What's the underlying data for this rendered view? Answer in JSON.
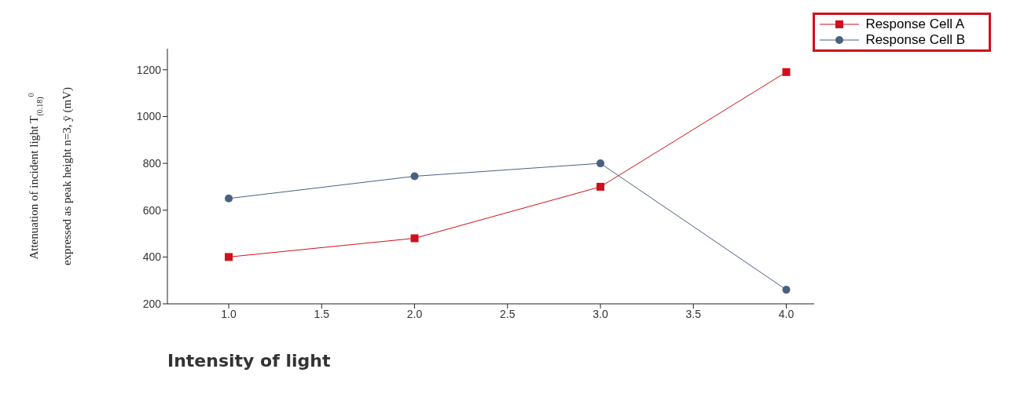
{
  "chart_data": {
    "type": "line",
    "xlabel": "Intensity of light",
    "ylabel": "Attenuation of incident light T$_{(0.18)}$$^{0}$\nexpressed as peak height n=3, ȳ (mV)",
    "x": [
      1.0,
      2.0,
      3.0,
      4.0
    ],
    "series": [
      {
        "name": "Response Cell A",
        "color": "#d0101c",
        "marker": "square",
        "values": [
          400,
          480,
          700,
          1190
        ]
      },
      {
        "name": "Response Cell B",
        "color": "#4a6080",
        "marker": "circle",
        "values": [
          650,
          745,
          800,
          260
        ]
      }
    ],
    "xlim": [
      0.67,
      4.15
    ],
    "xticks": [
      {
        "value": 1,
        "label": "1.0"
      },
      {
        "value": 1.5,
        "label": "1.5"
      },
      {
        "value": 2,
        "label": "2.0"
      },
      {
        "value": 2.5,
        "label": "2.5"
      },
      {
        "value": 3,
        "label": "3.0"
      },
      {
        "value": 3.5,
        "label": "3.5"
      },
      {
        "value": 4,
        "label": "4.0"
      }
    ],
    "ylim": [
      200,
      1290
    ],
    "yticks": [
      200,
      400,
      600,
      800,
      1000,
      1200
    ],
    "grid": false,
    "legend": "top right",
    "line_style": "solid"
  }
}
